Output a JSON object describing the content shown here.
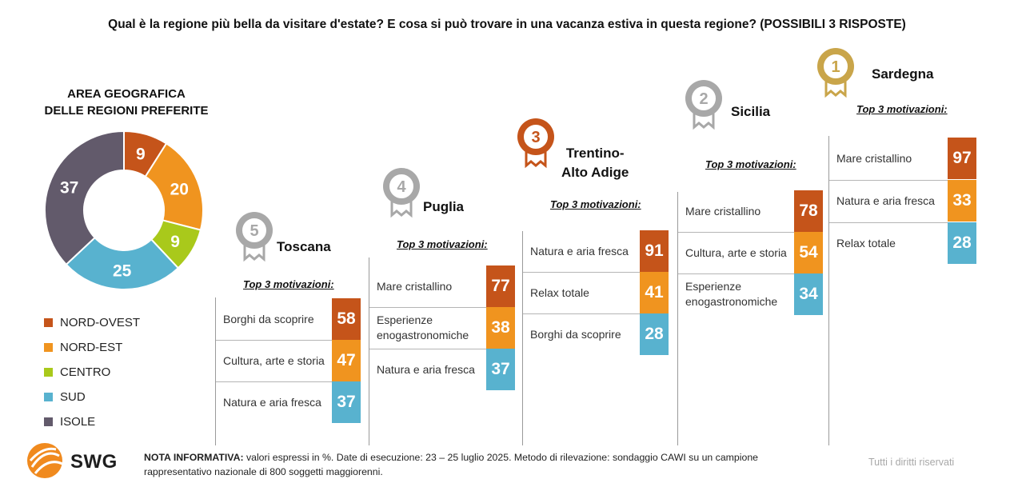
{
  "title": "Qual è la regione più bella da visitare d'estate? E cosa si può trovare in una vacanza estiva in questa regione? (POSSIBILI 3 RISPOSTE)",
  "donut": {
    "title_line1": "AREA GEOGRAFICA",
    "title_line2": "DELLE REGIONI PREFERITE"
  },
  "top3_label": "Top 3 motivazioni:",
  "regions": [
    {
      "rank": "5",
      "name": "Toscana",
      "items": [
        {
          "label": "Borghi da scoprire",
          "value": 58
        },
        {
          "label": "Cultura, arte e storia",
          "value": 47
        },
        {
          "label": "Natura e aria fresca",
          "value": 37
        }
      ]
    },
    {
      "rank": "4",
      "name": "Puglia",
      "items": [
        {
          "label": "Mare cristallino",
          "value": 77
        },
        {
          "label": "Esperienze enogastronomiche",
          "value": 38
        },
        {
          "label": "Natura e aria fresca",
          "value": 37
        }
      ]
    },
    {
      "rank": "3",
      "name": "Trentino-Alto Adige",
      "name_line1": "Trentino-",
      "name_line2": "Alto Adige",
      "items": [
        {
          "label": "Natura e aria fresca",
          "value": 91
        },
        {
          "label": "Relax totale",
          "value": 41
        },
        {
          "label": "Borghi da scoprire",
          "value": 28
        }
      ]
    },
    {
      "rank": "2",
      "name": "Sicilia",
      "items": [
        {
          "label": "Mare cristallino",
          "value": 78
        },
        {
          "label": "Cultura, arte e storia",
          "value": 54
        },
        {
          "label": "Esperienze enogastronomiche",
          "value": 34
        }
      ]
    },
    {
      "rank": "1",
      "name": "Sardegna",
      "items": [
        {
          "label": "Mare cristallino",
          "value": 97
        },
        {
          "label": "Natura e aria fresca",
          "value": 33
        },
        {
          "label": "Relax totale",
          "value": 28
        }
      ]
    }
  ],
  "colors": {
    "box_first": "#c5541a",
    "box_second": "#f0941f",
    "box_third": "#58b2cf",
    "medal_gold": "#c9a54a",
    "medal_silver": "#a8a8a8",
    "medal_bronze": "#c5541a"
  },
  "chart_data": {
    "type": "pie",
    "title": "AREA GEOGRAFICA DELLE REGIONI PREFERITE",
    "categories": [
      "NORD-OVEST",
      "NORD-EST",
      "CENTRO",
      "SUD",
      "ISOLE"
    ],
    "values": [
      9,
      20,
      9,
      25,
      37
    ],
    "colors": [
      "#c5541a",
      "#f0941f",
      "#a9c91b",
      "#58b2cf",
      "#625a6b"
    ],
    "legend": "bottom-left"
  },
  "footer": {
    "logo": "SWG",
    "nota_label": "NOTA INFORMATIVA:",
    "nota_text": " valori espressi in %. Date di esecuzione: 23 – 25 luglio 2025. Metodo di rilevazione: sondaggio CAWI su un campione rappresentativo nazionale di 800 soggetti maggiorenni.",
    "rights": "Tutti i diritti riservati"
  }
}
